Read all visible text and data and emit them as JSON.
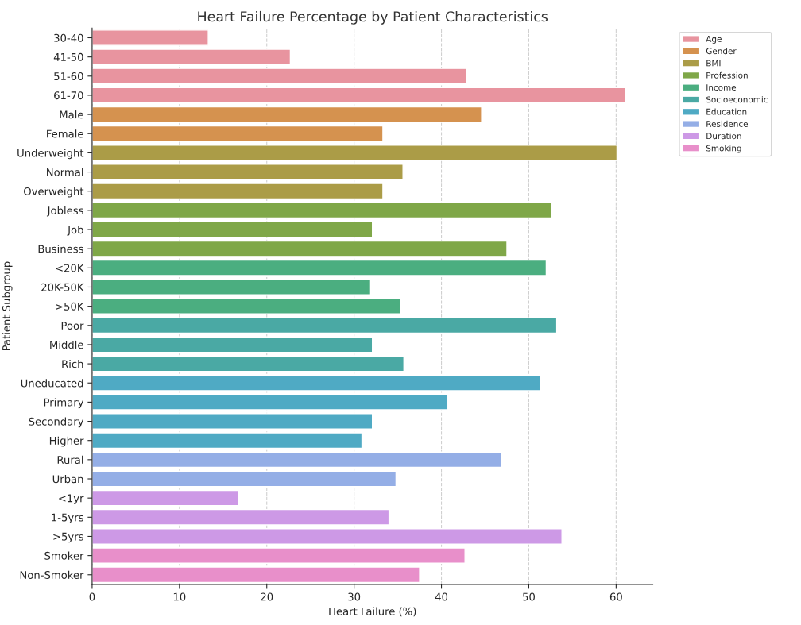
{
  "chart_data": {
    "type": "bar",
    "orientation": "horizontal",
    "title": "Heart Failure Percentage by Patient Characteristics",
    "xlabel": "Heart Failure (%)",
    "ylabel": "Patient Subgroup",
    "categories": [
      "30-40",
      "41-50",
      "51-60",
      "61-70",
      "Male",
      "Female",
      "Underweight",
      "Normal",
      "Overweight",
      "Jobless",
      "Job",
      "Business",
      "<20K",
      "20K-50K",
      ">50K",
      "Poor",
      "Middle",
      "Rich",
      "Uneducated",
      "Primary",
      "Secondary",
      "Higher",
      "Rural",
      "Urban",
      "<1yr",
      "1-5yrs",
      ">5yrs",
      "Smoker",
      "Non-Smoker"
    ],
    "series": [
      {
        "name": "Age",
        "color": "#e8949f",
        "values": [
          13.3,
          22.7,
          42.9,
          61.1,
          null,
          null,
          null,
          null,
          null,
          null,
          null,
          null,
          null,
          null,
          null,
          null,
          null,
          null,
          null,
          null,
          null,
          null,
          null,
          null,
          null,
          null,
          null,
          null,
          null
        ]
      },
      {
        "name": "Gender",
        "color": "#d5924f",
        "values": [
          null,
          null,
          null,
          null,
          44.6,
          33.3,
          null,
          null,
          null,
          null,
          null,
          null,
          null,
          null,
          null,
          null,
          null,
          null,
          null,
          null,
          null,
          null,
          null,
          null,
          null,
          null,
          null,
          null,
          null
        ]
      },
      {
        "name": "BMI",
        "color": "#ab9c47",
        "values": [
          null,
          null,
          null,
          null,
          null,
          null,
          60.1,
          35.6,
          33.3,
          null,
          null,
          null,
          null,
          null,
          null,
          null,
          null,
          null,
          null,
          null,
          null,
          null,
          null,
          null,
          null,
          null,
          null,
          null,
          null
        ]
      },
      {
        "name": "Profession",
        "color": "#7fa748",
        "values": [
          null,
          null,
          null,
          null,
          null,
          null,
          null,
          null,
          null,
          52.6,
          32.1,
          47.5,
          null,
          null,
          null,
          null,
          null,
          null,
          null,
          null,
          null,
          null,
          null,
          null,
          null,
          null,
          null,
          null,
          null
        ]
      },
      {
        "name": "Income",
        "color": "#4bae80",
        "values": [
          null,
          null,
          null,
          null,
          null,
          null,
          null,
          null,
          null,
          null,
          null,
          null,
          52.0,
          31.8,
          35.3,
          null,
          null,
          null,
          null,
          null,
          null,
          null,
          null,
          null,
          null,
          null,
          null,
          null,
          null
        ]
      },
      {
        "name": "Socioeconomic",
        "color": "#4aa9a4",
        "values": [
          null,
          null,
          null,
          null,
          null,
          null,
          null,
          null,
          null,
          null,
          null,
          null,
          null,
          null,
          null,
          53.2,
          32.1,
          35.7,
          null,
          null,
          null,
          null,
          null,
          null,
          null,
          null,
          null,
          null,
          null
        ]
      },
      {
        "name": "Education",
        "color": "#4faac4",
        "values": [
          null,
          null,
          null,
          null,
          null,
          null,
          null,
          null,
          null,
          null,
          null,
          null,
          null,
          null,
          null,
          null,
          null,
          null,
          51.3,
          40.7,
          32.1,
          30.9,
          null,
          null,
          null,
          null,
          null,
          null,
          null
        ]
      },
      {
        "name": "Residence",
        "color": "#94aee6",
        "values": [
          null,
          null,
          null,
          null,
          null,
          null,
          null,
          null,
          null,
          null,
          null,
          null,
          null,
          null,
          null,
          null,
          null,
          null,
          null,
          null,
          null,
          null,
          46.9,
          34.8,
          null,
          null,
          null,
          null,
          null
        ]
      },
      {
        "name": "Duration",
        "color": "#cd99e6",
        "values": [
          null,
          null,
          null,
          null,
          null,
          null,
          null,
          null,
          null,
          null,
          null,
          null,
          null,
          null,
          null,
          null,
          null,
          null,
          null,
          null,
          null,
          null,
          null,
          null,
          16.8,
          34.0,
          53.8,
          null,
          null
        ]
      },
      {
        "name": "Smoking",
        "color": "#e88fca",
        "values": [
          null,
          null,
          null,
          null,
          null,
          null,
          null,
          null,
          null,
          null,
          null,
          null,
          null,
          null,
          null,
          null,
          null,
          null,
          null,
          null,
          null,
          null,
          null,
          null,
          null,
          null,
          null,
          42.7,
          37.5
        ]
      }
    ],
    "xlim": [
      0,
      64.2
    ],
    "xticks": [
      0,
      10,
      20,
      30,
      40,
      50,
      60
    ],
    "grid": "x",
    "legend": "top right"
  }
}
